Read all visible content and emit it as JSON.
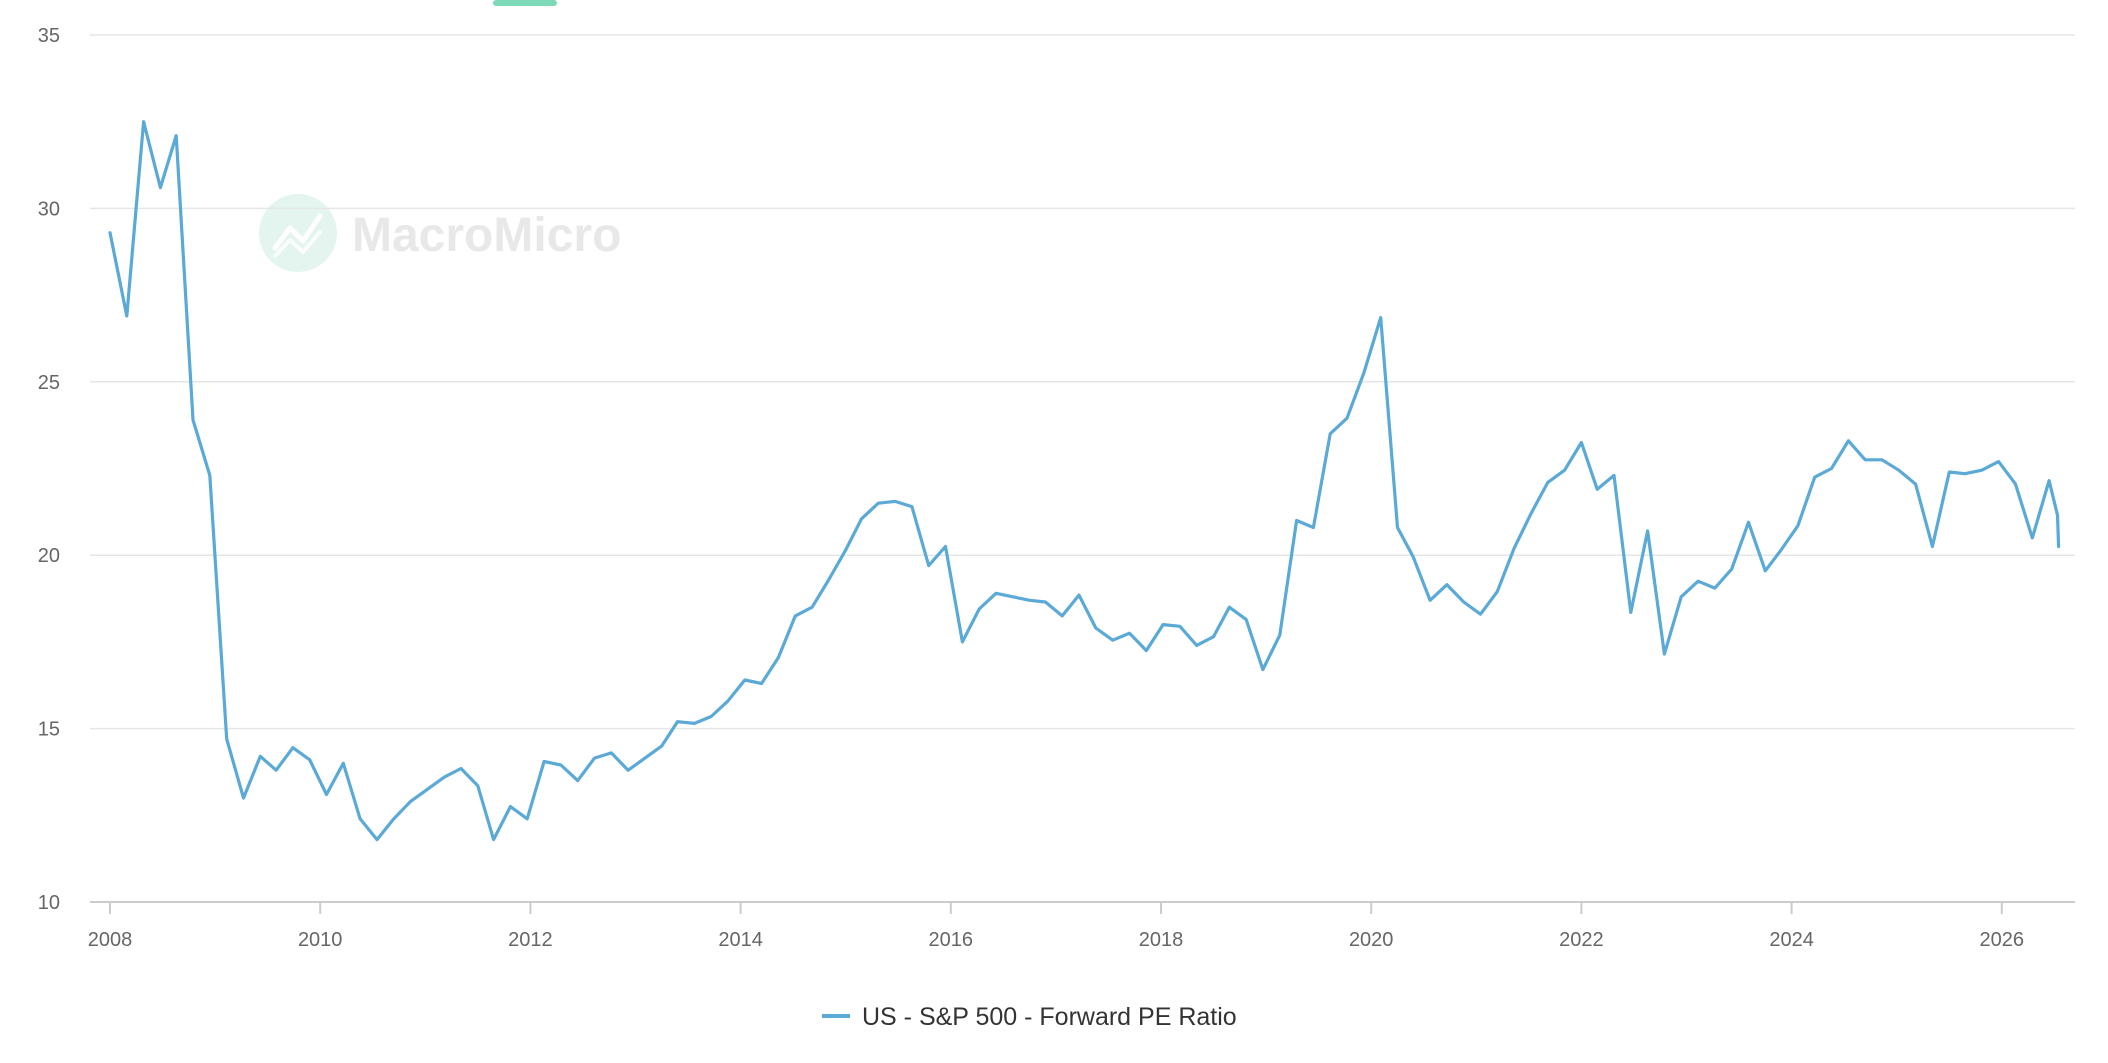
{
  "watermark": {
    "brand": "MacroMicro",
    "icon": "macromicro-logo-icon",
    "icon_color": "#e3f5ee"
  },
  "chart_data": {
    "type": "line",
    "xlabel": "",
    "ylabel": "",
    "xlim": [
      2008,
      2026.6
    ],
    "ylim": [
      10,
      35
    ],
    "x_ticks": [
      2008,
      2010,
      2012,
      2014,
      2016,
      2018,
      2020,
      2022,
      2024,
      2026
    ],
    "y_ticks": [
      10,
      15,
      20,
      25,
      30,
      35
    ],
    "grid": true,
    "legend_position": "bottom-center",
    "colors": {
      "line": "#5aa9d6",
      "grid": "#e6e6e6",
      "axis": "#cccccc",
      "top_marker": "#7dd9b8"
    },
    "series": [
      {
        "name": "US - S&P 500 - Forward PE Ratio",
        "x": [
          2008.0,
          2008.16,
          2008.32,
          2008.48,
          2008.63,
          2008.79,
          2008.95,
          2009.11,
          2009.27,
          2009.43,
          2009.58,
          2009.74,
          2009.9,
          2010.06,
          2010.22,
          2010.38,
          2010.54,
          2010.7,
          2010.86,
          2011.02,
          2011.18,
          2011.34,
          2011.5,
          2011.65,
          2011.81,
          2011.97,
          2012.13,
          2012.29,
          2012.45,
          2012.61,
          2012.77,
          2012.93,
          2013.09,
          2013.25,
          2013.4,
          2013.56,
          2013.72,
          2013.88,
          2014.04,
          2014.2,
          2014.36,
          2014.52,
          2014.68,
          2014.84,
          2015.0,
          2015.15,
          2015.31,
          2015.47,
          2015.63,
          2015.79,
          2015.95,
          2016.11,
          2016.27,
          2016.43,
          2016.59,
          2016.75,
          2016.9,
          2017.06,
          2017.22,
          2017.38,
          2017.54,
          2017.7,
          2017.86,
          2018.02,
          2018.18,
          2018.34,
          2018.5,
          2018.65,
          2018.81,
          2018.97,
          2019.13,
          2019.29,
          2019.45,
          2019.61,
          2019.77,
          2019.93,
          2020.09,
          2020.25,
          2020.4,
          2020.56,
          2020.72,
          2020.88,
          2021.04,
          2021.2,
          2021.36,
          2021.52,
          2021.68,
          2021.84,
          2022.0,
          2022.15,
          2022.31,
          2022.47,
          2022.63,
          2022.79,
          2022.95,
          2023.11,
          2023.27,
          2023.43,
          2023.59,
          2023.75,
          2023.9,
          2024.06,
          2024.22,
          2024.38,
          2024.54,
          2024.7,
          2024.86,
          2025.02,
          2025.18,
          2025.34,
          2025.5,
          2025.65,
          2025.81,
          2025.97,
          2026.13,
          2026.29,
          2026.45,
          2026.53,
          2026.54
        ],
        "values": [
          29.3,
          26.9,
          32.5,
          30.6,
          32.1,
          23.9,
          22.3,
          14.7,
          13.0,
          14.2,
          13.8,
          14.45,
          14.1,
          13.1,
          14.0,
          12.4,
          11.8,
          12.4,
          12.9,
          13.25,
          13.6,
          13.85,
          13.35,
          11.8,
          12.75,
          12.4,
          14.05,
          13.95,
          13.5,
          14.15,
          14.3,
          13.8,
          14.15,
          14.5,
          15.2,
          15.15,
          15.35,
          15.8,
          16.4,
          16.3,
          17.05,
          18.25,
          18.5,
          19.3,
          20.15,
          21.05,
          21.5,
          21.55,
          21.4,
          19.7,
          20.25,
          17.5,
          18.45,
          18.9,
          18.8,
          18.7,
          18.65,
          18.25,
          18.85,
          17.9,
          17.55,
          17.75,
          17.25,
          18.0,
          17.95,
          17.4,
          17.65,
          18.5,
          18.15,
          16.7,
          17.7,
          21.0,
          20.8,
          23.5,
          23.95,
          25.25,
          26.85,
          20.8,
          19.95,
          18.7,
          19.15,
          18.65,
          18.3,
          18.95,
          20.2,
          21.2,
          22.1,
          22.45,
          23.25,
          21.9,
          22.3,
          18.35,
          20.7,
          17.15,
          18.8,
          19.25,
          19.05,
          19.6,
          20.95,
          19.55,
          20.15,
          20.85,
          22.25,
          22.5,
          23.3,
          22.75,
          22.75,
          22.45,
          22.05,
          20.25,
          22.4,
          22.35,
          22.45,
          22.7,
          22.05,
          20.5,
          22.15,
          21.15,
          20.25
        ]
      }
    ]
  }
}
